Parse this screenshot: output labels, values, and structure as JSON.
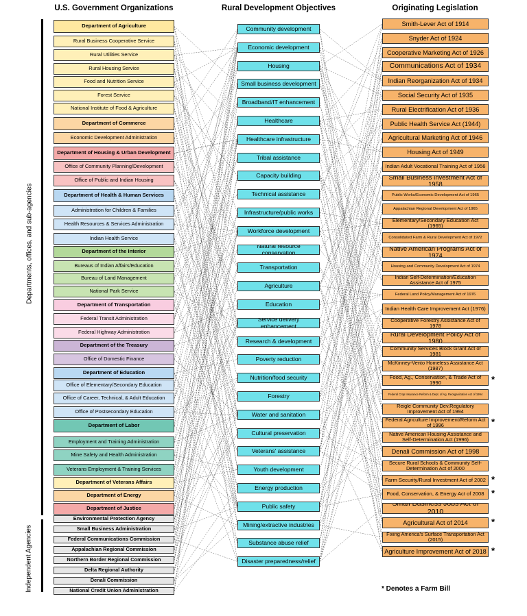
{
  "headers": {
    "orgs": "U.S. Government Organizations",
    "objectives": "Rural Development Objectives",
    "legislation": "Originating Legislation"
  },
  "side_labels": {
    "departments": "Departments, offices, and sub-agencies",
    "independent": "Independent Agencies"
  },
  "footnote": "* Denotes a Farm Bill",
  "orgs": [
    {
      "label": "Department of Agriculture",
      "type": "dept",
      "color": "#ffe8a0"
    },
    {
      "label": "Rural Business Cooperative Service",
      "type": "sub",
      "color": "#fff0b8"
    },
    {
      "label": "Rural Utilities Service",
      "type": "sub",
      "color": "#fff0b8"
    },
    {
      "label": "Rural Housing Service",
      "type": "sub",
      "color": "#fff0b8"
    },
    {
      "label": "Food and Nutrition Service",
      "type": "sub",
      "color": "#fff0b8"
    },
    {
      "label": "Forest Service",
      "type": "sub",
      "color": "#fff0b8"
    },
    {
      "label": "National Institute of Food & Agriculture",
      "type": "sub",
      "color": "#fff0b8"
    },
    {
      "label": "Department of Commerce",
      "type": "dept",
      "color": "#fcd6a4"
    },
    {
      "label": "Economic Development Administration",
      "type": "sub",
      "color": "#fcd6a4"
    },
    {
      "label": "Department of Housing & Urban Development",
      "type": "dept",
      "color": "#f4a9a8"
    },
    {
      "label": "Office of Community Planning/Development",
      "type": "sub",
      "color": "#f8c2c2"
    },
    {
      "label": "Office of Public and Indian Housing",
      "type": "sub",
      "color": "#f8c2c2"
    },
    {
      "label": "Department of Health & Human Services",
      "type": "dept",
      "color": "#b9d8f2"
    },
    {
      "label": "Administration for Children & Families",
      "type": "sub",
      "color": "#cfe4f6"
    },
    {
      "label": "Health Resources & Services Administration",
      "type": "sub",
      "color": "#cfe4f6"
    },
    {
      "label": "Indian Health Service",
      "type": "sub",
      "color": "#cfe4f6"
    },
    {
      "label": "Department of the Interior",
      "type": "dept",
      "color": "#b3d99a"
    },
    {
      "label": "Bureaus of Indian Affairs/Education",
      "type": "sub",
      "color": "#c8e4b2"
    },
    {
      "label": "Bureau of Land Management",
      "type": "sub",
      "color": "#c8e4b2"
    },
    {
      "label": "National Park Service",
      "type": "sub",
      "color": "#c8e4b2"
    },
    {
      "label": "Department of Transportation",
      "type": "dept",
      "color": "#f9cde0"
    },
    {
      "label": "Federal Transit Administration",
      "type": "sub",
      "color": "#fbdbe8"
    },
    {
      "label": "Federal Highway Administration",
      "type": "sub",
      "color": "#fbdbe8"
    },
    {
      "label": "Department of the Treasury",
      "type": "dept",
      "color": "#cbb5d6"
    },
    {
      "label": "Office of Domestic Finance",
      "type": "sub",
      "color": "#d7c5e0"
    },
    {
      "label": "Department of Education",
      "type": "dept",
      "color": "#b9d8f2"
    },
    {
      "label": "Office of Elementary/Secondary Education",
      "type": "sub",
      "color": "#cfe4f6"
    },
    {
      "label": "Office of Career, Technical, & Adult Education",
      "type": "sub",
      "color": "#cfe4f6"
    },
    {
      "label": "Office of Postsecondary Education",
      "type": "sub",
      "color": "#cfe4f6"
    },
    {
      "label": "Department of Labor",
      "type": "dept",
      "color": "#72c7b4"
    },
    {
      "label": "Employment and Training Administration",
      "type": "sub",
      "color": "#8fd3c2"
    },
    {
      "label": "Mine Safety and Health Administration",
      "type": "sub",
      "color": "#8fd3c2"
    },
    {
      "label": "Veterans Employment & Training Services",
      "type": "sub",
      "color": "#8fd3c2"
    },
    {
      "label": "Department of Veterans Affairs",
      "type": "dept",
      "color": "#fff0b8"
    },
    {
      "label": "Department of Energy",
      "type": "dept",
      "color": "#fcd6a4"
    },
    {
      "label": "Department of Justice",
      "type": "dept",
      "color": "#f4a9a8"
    },
    {
      "label": "Environmental Protection Agency",
      "type": "ind",
      "color": "#e6e6e6"
    },
    {
      "label": "Small Business Administration",
      "type": "ind",
      "color": "#e6e6e6"
    },
    {
      "label": "Federal Communications Commission",
      "type": "ind",
      "color": "#e6e6e6"
    },
    {
      "label": "Appalachian Regional Commission",
      "type": "ind",
      "color": "#e6e6e6"
    },
    {
      "label": "Northern Border Regional Commission",
      "type": "ind",
      "color": "#e6e6e6"
    },
    {
      "label": "Delta Regional Authority",
      "type": "ind",
      "color": "#e6e6e6"
    },
    {
      "label": "Denali Commission",
      "type": "ind",
      "color": "#e6e6e6"
    },
    {
      "label": "National Credit Union Administration",
      "type": "ind",
      "color": "#e6e6e6"
    }
  ],
  "objectives": [
    "Community development",
    "Economic development",
    "Housing",
    "Small business development",
    "Broadband/IT enhancement",
    "Healthcare",
    "Healthcare infrastructure",
    "Tribal assistance",
    "Capacity building",
    "Technical assistance",
    "Infrastructure/public works",
    "Workforce development",
    "Natural resource conservation",
    "Transportation",
    "Agriculture",
    "Education",
    "Service delivery enhancement",
    "Research & development",
    "Poverty reduction",
    "Nutrition/food security",
    "Forestry",
    "Water and sanitation",
    "Cultural preservation",
    "Veterans' assistance",
    "Youth development",
    "Energy production",
    "Public safety",
    "Mining/extractive industries",
    "Substance abuse relief",
    "Disaster preparedness/relief"
  ],
  "legislation": [
    {
      "label": "Smith-Lever Act of 1914",
      "size": "m",
      "farm_bill": false
    },
    {
      "label": "Snyder Act of 1924",
      "size": "m",
      "farm_bill": false
    },
    {
      "label": "Cooperative Marketing Act of 1926",
      "size": "m",
      "farm_bill": false
    },
    {
      "label": "Communications Act of 1934",
      "size": "l",
      "farm_bill": false
    },
    {
      "label": "Indian Reorganization Act of 1934",
      "size": "m",
      "farm_bill": false
    },
    {
      "label": "Social Security Act of 1935",
      "size": "m",
      "farm_bill": false
    },
    {
      "label": "Rural Electrification Act of 1936",
      "size": "m",
      "farm_bill": false
    },
    {
      "label": "Public Health Service Act (1944)",
      "size": "m",
      "farm_bill": false
    },
    {
      "label": "Agricultural Marketing Act of 1946",
      "size": "m",
      "farm_bill": false
    },
    {
      "label": "Housing Act of 1949",
      "size": "m",
      "farm_bill": false
    },
    {
      "label": "Indian Adult Vocational Training Act of 1956",
      "size": "s",
      "farm_bill": false
    },
    {
      "label": "Small Business Investment Act of 1958",
      "size": "m",
      "farm_bill": false
    },
    {
      "label": "Public Works/Economic Development Act of 1965",
      "size": "xs",
      "farm_bill": false
    },
    {
      "label": "Appalachian Regional Development Act of 1965",
      "size": "xs",
      "farm_bill": false
    },
    {
      "label": "Elementary/Secondary Education Act (1965)",
      "size": "s",
      "farm_bill": false
    },
    {
      "label": "Consolidated Farm & Rural Development Act of 1972",
      "size": "xs",
      "farm_bill": false
    },
    {
      "label": "Native American Programs Act of 1974",
      "size": "m",
      "farm_bill": false
    },
    {
      "label": "Housing and Community Development Act of 1974",
      "size": "xs",
      "farm_bill": false
    },
    {
      "label": "Indian Self-Determination/Education Assistance Act of 1975",
      "size": "s2",
      "farm_bill": false
    },
    {
      "label": "Federal Land Policy/Management Act of 1976",
      "size": "xs",
      "farm_bill": false
    },
    {
      "label": "Indian Health Care Improvement Act (1976)",
      "size": "s",
      "farm_bill": false
    },
    {
      "label": "Cooperative Forestry Assistance Act of 1978",
      "size": "s",
      "farm_bill": false
    },
    {
      "label": "Rural Development Policy Act of 1980",
      "size": "m",
      "farm_bill": false
    },
    {
      "label": "Community Services Block Grant Act of 1981",
      "size": "s",
      "farm_bill": false
    },
    {
      "label": "McKinney-Vento Homeless Assistance Act (1987)",
      "size": "s2",
      "farm_bill": false
    },
    {
      "label": "Food, Ag., Conservation, & Trade Act of 1990",
      "size": "s",
      "farm_bill": true
    },
    {
      "label": "Federal Crop Insurance Reform & Dept. of Ag. Reorganization Act of 1994",
      "size": "xxs",
      "farm_bill": false
    },
    {
      "label": "Reigle Community Dev.Regulatory Improvement Act of 1994",
      "size": "s2",
      "farm_bill": false
    },
    {
      "label": "Federal Agriculture Improvement/Reform Act of 1996",
      "size": "s2",
      "farm_bill": true
    },
    {
      "label": "Native American Housing Assistance and Self-Determination Act (1996)",
      "size": "s2",
      "farm_bill": false
    },
    {
      "label": "Denali Commission Act of 1998",
      "size": "m",
      "farm_bill": false
    },
    {
      "label": "Secure Rural Schools & Community Self-Determination Act of 2000",
      "size": "s2",
      "farm_bill": false
    },
    {
      "label": "Farm Security/Rural Investment Act of 2002",
      "size": "s",
      "farm_bill": true
    },
    {
      "label": "Food, Conservation, & Energy Act of 2008",
      "size": "s",
      "farm_bill": true
    },
    {
      "label": "Small Business Jobs Act of 2010",
      "size": "l",
      "farm_bill": false
    },
    {
      "label": "Agricultural Act of 2014",
      "size": "m",
      "farm_bill": true
    },
    {
      "label": "Fixing America's Surface Transportation Act (2015)",
      "size": "s2",
      "farm_bill": false
    },
    {
      "label": "Agriculture Improvement Act of 2018",
      "size": "m",
      "farm_bill": true
    }
  ],
  "star_symbol": "*",
  "colors": {
    "objective_fill": "#6fe1ea",
    "legislation_fill": "#f7b36a",
    "link_line": "#444444"
  }
}
